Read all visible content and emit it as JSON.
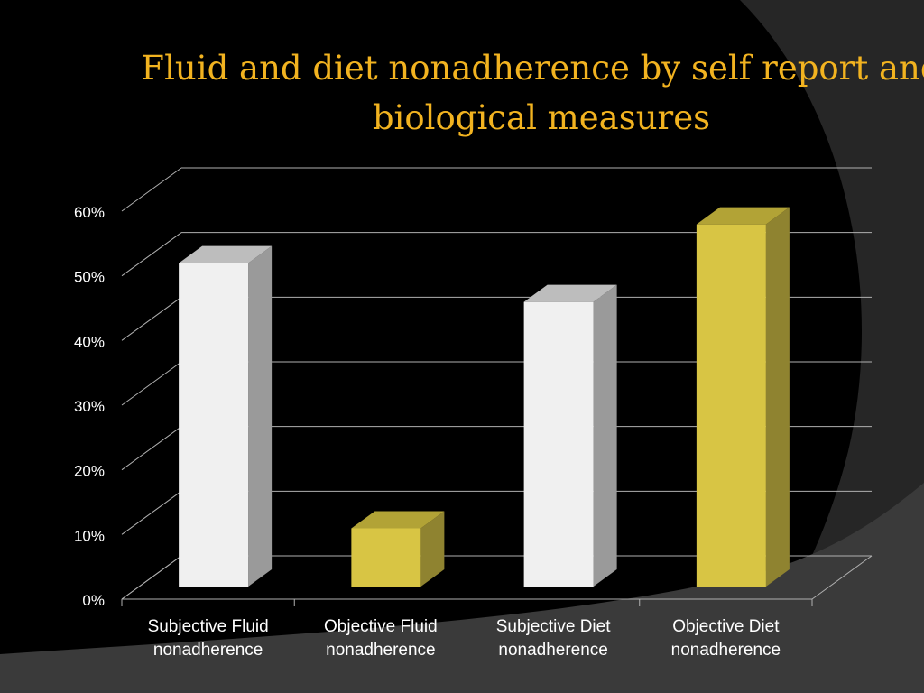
{
  "slide": {
    "title": "Fluid and diet nonadherence by self report and biological measures"
  },
  "colors": {
    "background": "#000000",
    "title": "#f2b320",
    "gridline": "#b0b0b0",
    "axis_text": "#ffffff",
    "white_bar_front": "#f0f0f0",
    "white_bar_side": "#9a9a9a",
    "white_bar_top": "#bdbdbd",
    "gold_bar_front": "#d8c544",
    "gold_bar_side": "#8f8330",
    "gold_bar_top": "#b2a336"
  },
  "chart_data": {
    "type": "bar",
    "style": "3d-column",
    "title": "Fluid and diet nonadherence by self report and biological measures",
    "xlabel": "",
    "ylabel": "",
    "categories": [
      "Subjective Fluid nonadherence",
      "Objective Fluid nonadherence",
      "Subjective Diet nonadherence",
      "Objective Diet nonadherence"
    ],
    "category_lines": [
      [
        "Subjective Fluid",
        "nonadherence"
      ],
      [
        "Objective Fluid",
        "nonadherence"
      ],
      [
        "Subjective Diet",
        "nonadherence"
      ],
      [
        "Objective Diet",
        "nonadherence"
      ]
    ],
    "values": [
      0.5,
      0.09,
      0.44,
      0.56
    ],
    "bar_colors": [
      "white",
      "gold",
      "white",
      "gold"
    ],
    "ylim": [
      0,
      0.6
    ],
    "yticks": [
      0,
      0.1,
      0.2,
      0.3,
      0.4,
      0.5,
      0.6
    ],
    "ytick_labels": [
      "0%",
      "10%",
      "20%",
      "30%",
      "40%",
      "50%",
      "60%"
    ],
    "grid": true,
    "legend": "none"
  }
}
